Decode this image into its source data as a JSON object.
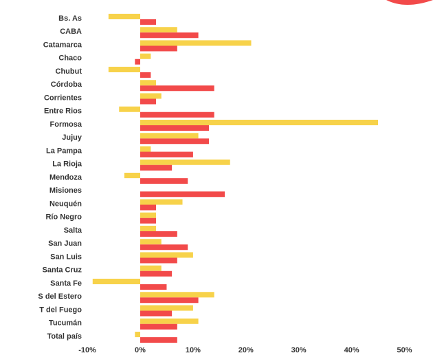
{
  "colors": {
    "series_a": "#f7d24a",
    "series_b": "#f24a4a",
    "decoration": "#f24a4a"
  },
  "chart_data": {
    "type": "bar",
    "orientation": "horizontal",
    "title": "",
    "xlabel": "",
    "ylabel": "",
    "xlim": [
      -10,
      50
    ],
    "x_ticks": [
      -10,
      0,
      10,
      20,
      30,
      40,
      50
    ],
    "x_tick_labels": [
      "-10%",
      "0%",
      "10%",
      "20%",
      "30%",
      "40%",
      "50%"
    ],
    "grid": false,
    "legend": "none",
    "categories": [
      "Bs. As",
      "CABA",
      "Catamarca",
      "Chaco",
      "Chubut",
      "Córdoba",
      "Corrientes",
      "Entre Rios",
      "Formosa",
      "Jujuy",
      "La Pampa",
      "La Rioja",
      "Mendoza",
      "Misiones",
      "Neuquén",
      "Río Negro",
      "Salta",
      "San Juan",
      "San Luis",
      "Santa Cruz",
      "Santa Fe",
      "S del Estero",
      "T del Fuego",
      "Tucumán",
      "Total país"
    ],
    "series": [
      {
        "color": "#f7d24a",
        "values": [
          -6,
          7,
          21,
          2,
          -6,
          3,
          4,
          -4,
          45,
          11,
          2,
          17,
          -3,
          0,
          8,
          3,
          3,
          4,
          10,
          4,
          -9,
          14,
          10,
          11,
          -1
        ]
      },
      {
        "color": "#f24a4a",
        "values": [
          3,
          11,
          7,
          -1,
          2,
          14,
          3,
          14,
          13,
          13,
          10,
          6,
          9,
          16,
          3,
          3,
          7,
          9,
          7,
          6,
          5,
          11,
          6,
          7,
          7
        ]
      }
    ]
  }
}
